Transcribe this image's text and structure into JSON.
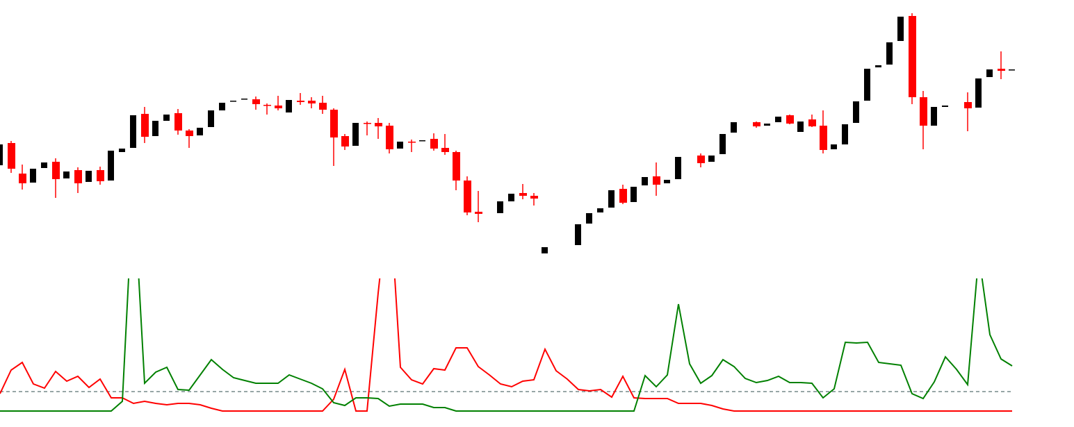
{
  "chart_data": [
    {
      "type": "candlestick",
      "title": "",
      "xlabel": "",
      "ylabel": "",
      "grid": false,
      "colors": {
        "bullish": "#000000",
        "bearish": "#ff0000"
      },
      "ohlc_format": [
        "open",
        "high",
        "low",
        "close"
      ],
      "candles": [
        [
          162,
          192,
          162,
          192
        ],
        [
          194,
          197,
          151,
          157
        ],
        [
          150,
          163,
          127,
          136
        ],
        [
          137,
          157,
          137,
          157
        ],
        [
          158,
          166,
          158,
          166
        ],
        [
          167,
          172,
          115,
          142
        ],
        [
          143,
          153,
          143,
          153
        ],
        [
          155,
          159,
          122,
          136
        ],
        [
          138,
          154,
          138,
          154
        ],
        [
          155,
          160,
          134,
          139
        ],
        [
          140,
          183,
          140,
          183
        ],
        [
          181,
          186,
          181,
          186
        ],
        [
          187,
          234,
          187,
          234
        ],
        [
          236,
          246,
          194,
          203
        ],
        [
          204,
          226,
          204,
          226
        ],
        [
          226,
          235,
          226,
          235
        ],
        [
          237,
          243,
          206,
          212
        ],
        [
          212,
          214,
          187,
          204
        ],
        [
          205,
          216,
          205,
          216
        ],
        [
          217,
          241,
          217,
          241
        ],
        [
          241,
          252,
          241,
          252
        ],
        [
          254,
          255,
          254,
          255
        ],
        [
          257,
          258,
          257,
          258
        ],
        [
          257,
          261,
          242,
          250
        ],
        [
          249,
          251,
          235,
          248
        ],
        [
          248,
          262,
          241,
          244
        ],
        [
          238,
          256,
          238,
          256
        ],
        [
          255,
          266,
          249,
          253
        ],
        [
          255,
          260,
          244,
          251
        ],
        [
          252,
          262,
          236,
          242
        ],
        [
          242,
          244,
          161,
          202
        ],
        [
          204,
          207,
          184,
          189
        ],
        [
          190,
          223,
          190,
          223
        ],
        [
          223,
          225,
          205,
          222
        ],
        [
          223,
          230,
          200,
          218
        ],
        [
          219,
          223,
          179,
          185
        ],
        [
          186,
          196,
          186,
          196
        ],
        [
          196,
          199,
          181,
          195
        ],
        [
          197,
          198,
          197,
          198
        ],
        [
          200,
          208,
          183,
          186
        ],
        [
          187,
          207,
          177,
          181
        ],
        [
          181,
          183,
          126,
          140
        ],
        [
          140,
          146,
          90,
          94
        ],
        [
          95,
          125,
          80,
          92
        ],
        null,
        [
          93,
          110,
          93,
          110
        ],
        [
          110,
          121,
          110,
          121
        ],
        [
          122,
          135,
          113,
          118
        ],
        [
          118,
          122,
          104,
          114
        ],
        [
          35,
          44,
          35,
          44
        ],
        null,
        null,
        [
          47,
          77,
          47,
          77
        ],
        [
          78,
          93,
          78,
          93
        ],
        [
          94,
          100,
          94,
          100
        ],
        [
          101,
          126,
          101,
          126
        ],
        [
          128,
          134,
          106,
          108
        ],
        [
          109,
          131,
          109,
          131
        ],
        [
          133,
          145,
          133,
          145
        ],
        [
          146,
          166,
          118,
          134
        ],
        [
          136,
          141,
          136,
          141
        ],
        [
          142,
          174,
          142,
          174
        ],
        null,
        [
          176,
          179,
          159,
          165
        ],
        [
          167,
          176,
          167,
          176
        ],
        [
          178,
          207,
          178,
          207
        ],
        [
          209,
          224,
          209,
          224
        ],
        null,
        [
          224,
          225,
          216,
          218
        ],
        [
          219,
          222,
          219,
          222
        ],
        [
          224,
          232,
          224,
          232
        ],
        [
          234,
          235,
          221,
          222
        ],
        [
          210,
          225,
          210,
          225
        ],
        [
          228,
          235,
          217,
          218
        ],
        [
          219,
          241,
          179,
          184
        ],
        [
          185,
          192,
          185,
          192
        ],
        [
          192,
          221,
          192,
          221
        ],
        [
          223,
          254,
          223,
          254
        ],
        [
          255,
          301,
          255,
          301
        ],
        [
          303,
          306,
          303,
          306
        ],
        [
          307,
          339,
          307,
          339
        ],
        [
          341,
          376,
          341,
          376
        ],
        [
          377,
          381,
          250,
          260
        ],
        [
          260,
          269,
          185,
          219
        ],
        [
          219,
          246,
          219,
          246
        ],
        [
          246,
          248,
          246,
          248
        ],
        null,
        [
          253,
          267,
          211,
          244
        ],
        [
          245,
          287,
          245,
          287
        ],
        [
          289,
          300,
          289,
          300
        ],
        [
          301,
          326,
          286,
          298
        ],
        [
          299,
          300,
          299,
          300
        ]
      ]
    },
    {
      "type": "line",
      "title": "",
      "xlabel": "",
      "ylabel": "",
      "grid": false,
      "reference_level": 28,
      "reference_style": "dashed",
      "reference_color": "#2f4f4f",
      "series": [
        {
          "color": "#ff0000",
          "values": [
            25,
            59,
            70,
            39,
            33,
            57,
            43,
            50,
            34,
            46,
            19,
            19,
            11,
            14,
            11,
            9,
            11,
            11,
            9,
            4,
            0,
            0,
            0,
            0,
            0,
            0,
            0,
            0,
            0,
            0,
            17,
            60,
            0,
            0,
            170,
            318,
            63,
            45,
            39,
            61,
            59,
            91,
            91,
            64,
            52,
            39,
            35,
            43,
            45,
            89,
            58,
            46,
            31,
            29,
            31,
            20,
            50,
            19,
            18,
            18,
            18,
            11,
            11,
            11,
            8,
            3,
            0,
            0,
            0,
            0,
            0,
            0,
            0,
            0,
            0,
            0,
            0,
            0,
            0,
            0,
            0,
            0,
            0,
            0,
            0,
            0,
            0,
            0,
            0,
            0,
            0,
            0
          ]
        },
        {
          "color": "#008000",
          "values": [
            0,
            0,
            0,
            0,
            0,
            0,
            0,
            0,
            0,
            0,
            0,
            14,
            329,
            40,
            56,
            63,
            31,
            30,
            52,
            74,
            60,
            48,
            44,
            40,
            40,
            40,
            52,
            46,
            40,
            32,
            12,
            8,
            19,
            19,
            18,
            7,
            10,
            10,
            10,
            5,
            5,
            0,
            0,
            0,
            0,
            0,
            0,
            0,
            0,
            0,
            0,
            0,
            0,
            0,
            0,
            0,
            0,
            0,
            51,
            35,
            52,
            154,
            68,
            40,
            51,
            74,
            64,
            47,
            41,
            44,
            50,
            41,
            41,
            40,
            19,
            32,
            99,
            98,
            99,
            70,
            68,
            66,
            25,
            18,
            42,
            78,
            60,
            38,
            225,
            110,
            75,
            65
          ]
        }
      ]
    }
  ]
}
